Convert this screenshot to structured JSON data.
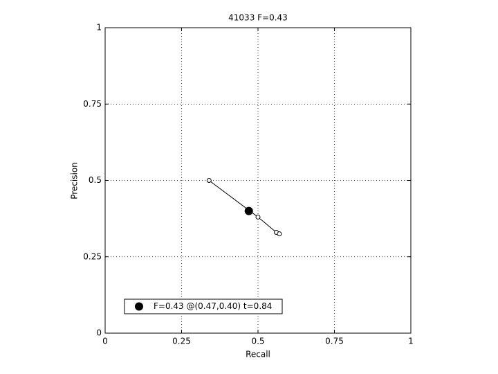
{
  "chart_data": {
    "type": "line",
    "title": "41033 F=0.43",
    "xlabel": "Recall",
    "ylabel": "Precision",
    "xlim": [
      0,
      1
    ],
    "ylim": [
      0,
      1
    ],
    "xticks": [
      0,
      0.25,
      0.5,
      0.75,
      1
    ],
    "yticks": [
      0,
      0.25,
      0.5,
      0.75,
      1
    ],
    "grid": true,
    "legend": "lower left",
    "series": [
      {
        "color": "#000000",
        "marker": "open-circle",
        "x": [
          0.34,
          0.5,
          0.56,
          0.57
        ],
        "values": [
          0.5,
          0.38,
          0.33,
          0.325
        ]
      },
      {
        "name": "F=0.43 @(0.47,0.40) t=0.84",
        "color": "#000000",
        "marker": "filled-circle",
        "x": [
          0.47
        ],
        "values": [
          0.4
        ]
      }
    ]
  }
}
